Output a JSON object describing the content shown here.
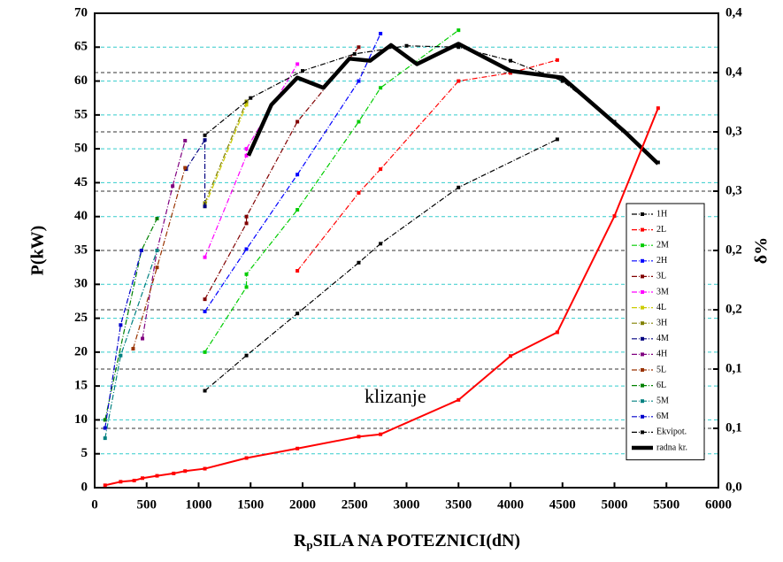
{
  "chart_data": {
    "type": "line",
    "xlabel": {
      "main": "R",
      "sub": "p",
      "rest": "SILA NA POTEZNICI(dN)"
    },
    "ylabel": "P(kW)",
    "y2label": "δ%",
    "annotation": "klizanje",
    "xlim": [
      0,
      6000
    ],
    "xticks": [
      0,
      500,
      1000,
      1500,
      2000,
      2500,
      3000,
      3500,
      4000,
      4500,
      5000,
      5500,
      6000
    ],
    "ylim": [
      0,
      70
    ],
    "yticks": [
      0,
      5,
      10,
      15,
      20,
      25,
      30,
      35,
      40,
      45,
      50,
      55,
      60,
      65,
      70
    ],
    "y2lim": [
      0,
      0.4
    ],
    "y2ticks": [
      {
        "value": 0,
        "label": "0,0"
      },
      {
        "value": 0.05,
        "label": "0,1"
      },
      {
        "value": 0.1,
        "label": "0,1"
      },
      {
        "value": 0.15,
        "label": "0,2"
      },
      {
        "value": 0.2,
        "label": "0,2"
      },
      {
        "value": 0.25,
        "label": "0,3"
      },
      {
        "value": 0.3,
        "label": "0,3"
      },
      {
        "value": 0.35,
        "label": "0,4"
      },
      {
        "value": 0.4,
        "label": "0,4"
      }
    ],
    "grid": true,
    "legend": "right",
    "series": [
      {
        "name": "1H",
        "color": "#000000",
        "style": "dashdot",
        "x": [
          1060,
          1460,
          1950,
          2540,
          2750,
          3500,
          4450
        ],
        "values": [
          14.3,
          19.5,
          25.7,
          33.2,
          36,
          44.3,
          51.4
        ]
      },
      {
        "name": "2L",
        "color": "#ff0000",
        "style": "dashdot",
        "x": [
          1950,
          2540,
          2750,
          3500,
          4000,
          4450
        ],
        "values": [
          32,
          43.5,
          47,
          60,
          61.2,
          63.1
        ]
      },
      {
        "name": "2M",
        "color": "#00cc00",
        "style": "dashdot",
        "x": [
          1060,
          1460,
          1460,
          1950,
          2540,
          2750,
          3500
        ],
        "values": [
          20,
          29.6,
          31.5,
          41,
          54,
          59,
          67.5
        ]
      },
      {
        "name": "2H",
        "color": "#0000ff",
        "style": "dashdot",
        "x": [
          1060,
          1460,
          1950,
          2540,
          2750
        ],
        "values": [
          26,
          35.2,
          46.2,
          60,
          67
        ]
      },
      {
        "name": "3L",
        "color": "#800000",
        "style": "dashdot",
        "x": [
          1060,
          1460,
          1460,
          1950,
          2540
        ],
        "values": [
          27.8,
          39,
          40,
          54,
          65
        ]
      },
      {
        "name": "3M",
        "color": "#ff00ff",
        "style": "dashdot",
        "x": [
          1060,
          1460,
          1460,
          1950
        ],
        "values": [
          34,
          49,
          50,
          62.5
        ]
      },
      {
        "name": "4L",
        "color": "#cccc00",
        "style": "dashdot",
        "x": [
          1060,
          1460
        ],
        "values": [
          41.5,
          56.5
        ]
      },
      {
        "name": "3H",
        "color": "#808000",
        "style": "dashdot",
        "x": [
          1060,
          1460
        ],
        "values": [
          42,
          57
        ]
      },
      {
        "name": "4M",
        "color": "#000080",
        "style": "dashdot",
        "x": [
          880,
          1060,
          1060
        ],
        "values": [
          47,
          51.3,
          41.5
        ]
      },
      {
        "name": "4H",
        "color": "#800080",
        "style": "dashdot",
        "x": [
          460,
          600,
          750,
          870
        ],
        "values": [
          22,
          35,
          44.5,
          51.2
        ]
      },
      {
        "name": "5L",
        "color": "#993300",
        "style": "dashdot",
        "x": [
          370,
          600,
          870
        ],
        "values": [
          20.5,
          32.5,
          47.2
        ]
      },
      {
        "name": "6L",
        "color": "#008000",
        "style": "dashdot",
        "x": [
          100,
          450,
          600
        ],
        "values": [
          10,
          35,
          39.7
        ]
      },
      {
        "name": "5M",
        "color": "#008080",
        "style": "dashdot",
        "x": [
          100,
          250,
          600
        ],
        "values": [
          7.3,
          19.5,
          35
        ]
      },
      {
        "name": "6M",
        "color": "#0000cc",
        "style": "dashdot",
        "x": [
          100,
          250,
          450
        ],
        "values": [
          8.8,
          24,
          35
        ]
      },
      {
        "name": "Ekvipot.",
        "color": "#000000",
        "style": "dashdot",
        "x": [
          1060,
          1500,
          2000,
          2500,
          3000,
          3500,
          4000,
          4500,
          5000,
          5420
        ],
        "values": [
          52,
          57.5,
          61.5,
          64,
          65.2,
          65,
          63,
          60,
          54,
          48
        ]
      },
      {
        "name": "radna kr.",
        "color": "#000000",
        "style": "thick",
        "x": [
          1480,
          1700,
          1950,
          2200,
          2450,
          2650,
          2850,
          3100,
          3500,
          4000,
          4500,
          5100,
          5420
        ],
        "values": [
          49,
          56.5,
          60.5,
          59,
          63.3,
          63,
          65.3,
          62.5,
          65.5,
          61.5,
          60.5,
          52.5,
          47.8
        ]
      },
      {
        "color": "#ff0000",
        "style": "solid",
        "axis": "y2",
        "x": [
          100,
          250,
          380,
          460,
          600,
          760,
          870,
          1060,
          1460,
          1950,
          2540,
          2750,
          3500,
          4000,
          4450,
          5000,
          5420
        ],
        "values": [
          0.002,
          0.005,
          0.006,
          0.008,
          0.01,
          0.012,
          0.014,
          0.016,
          0.025,
          0.033,
          0.043,
          0.045,
          0.074,
          0.111,
          0.131,
          0.229,
          0.32
        ]
      }
    ]
  }
}
